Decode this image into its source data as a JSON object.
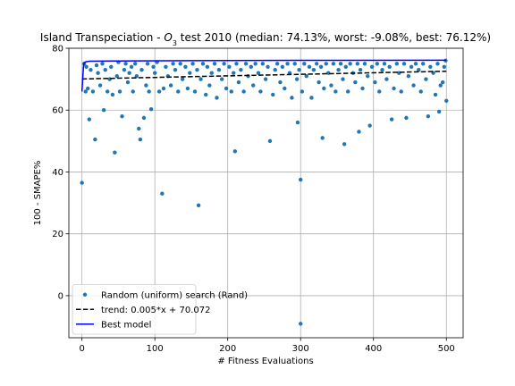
{
  "chart_data": {
    "type": "scatter",
    "title_parts": [
      "Island Transpeciation - ",
      "O",
      "3",
      " test 2010 (median: 74.13%, worst: -9.08%, best: 76.12%)"
    ],
    "x_label": "# Fitness Evaluations",
    "y_label": "100 - SMAPE%",
    "xlim": [
      -18,
      523
    ],
    "ylim": [
      -13.6,
      80
    ],
    "xticks": [
      0,
      100,
      200,
      300,
      400,
      500
    ],
    "yticks": [
      0,
      20,
      40,
      60,
      80
    ],
    "grid": true,
    "legend": "lower left",
    "series": [
      {
        "name": "Random (uniform) search (Rand)",
        "type": "scatter",
        "color": "#1f77b4",
        "x": [
          0,
          5,
          10,
          18,
          30,
          45,
          55,
          78,
          80,
          85,
          95,
          110,
          160,
          210,
          258,
          296,
          300,
          300,
          330,
          360,
          380,
          395,
          425,
          445,
          475,
          490,
          500,
          495,
          485,
          3,
          6,
          8,
          12,
          15,
          20,
          22,
          25,
          28,
          32,
          35,
          38,
          40,
          42,
          48,
          50,
          52,
          58,
          60,
          63,
          65,
          68,
          70,
          73,
          75,
          82,
          88,
          90,
          92,
          98,
          100,
          103,
          106,
          112,
          115,
          118,
          122,
          125,
          128,
          132,
          135,
          138,
          142,
          145,
          148,
          152,
          155,
          158,
          163,
          166,
          170,
          172,
          175,
          178,
          182,
          185,
          188,
          192,
          195,
          198,
          202,
          205,
          208,
          212,
          215,
          218,
          222,
          225,
          228,
          232,
          235,
          238,
          242,
          245,
          248,
          252,
          255,
          262,
          265,
          268,
          272,
          275,
          278,
          282,
          285,
          288,
          292,
          295,
          298,
          302,
          305,
          308,
          312,
          315,
          318,
          322,
          325,
          328,
          332,
          335,
          338,
          342,
          345,
          348,
          352,
          355,
          358,
          362,
          365,
          368,
          372,
          375,
          378,
          382,
          385,
          388,
          392,
          398,
          402,
          405,
          408,
          412,
          415,
          418,
          422,
          428,
          432,
          435,
          438,
          442,
          448,
          452,
          455,
          458,
          462,
          465,
          468,
          472,
          478,
          482,
          488,
          492,
          497,
          499
        ],
        "values": [
          36.5,
          66,
          57,
          50.5,
          60,
          46.3,
          58,
          54,
          50.5,
          57.5,
          60.3,
          33,
          29.2,
          46.7,
          50,
          56,
          37.5,
          -9.08,
          51,
          49,
          53,
          55,
          57,
          57.5,
          58,
          59.5,
          63,
          69,
          65,
          75,
          74,
          67,
          73,
          66,
          74.5,
          72,
          68,
          75,
          73,
          66,
          70,
          74,
          65,
          71,
          75.5,
          66,
          73,
          75,
          69,
          72,
          74,
          66,
          75,
          71,
          73,
          68,
          75,
          66,
          74,
          72,
          75.5,
          66,
          67,
          74,
          71,
          68,
          75,
          73,
          66,
          75,
          70,
          74,
          67,
          72,
          75,
          66,
          73,
          70,
          75,
          65,
          74,
          68,
          72,
          75,
          64,
          73,
          70,
          75,
          67,
          74,
          66,
          72,
          75,
          69,
          73,
          66,
          75,
          71,
          74,
          68,
          75,
          72,
          66,
          75,
          70,
          74,
          65,
          73,
          75,
          69,
          74,
          67,
          75,
          72,
          64,
          75,
          70,
          73,
          66,
          75,
          71,
          74,
          64,
          73,
          75,
          69,
          74,
          67,
          75,
          72,
          68,
          75,
          66,
          73,
          75,
          70,
          74,
          66,
          75,
          72,
          69,
          75,
          73,
          67,
          75,
          71,
          74,
          69,
          75,
          66,
          73,
          75,
          70,
          74,
          67,
          75,
          72,
          66,
          75,
          71,
          74,
          68,
          75,
          73,
          66,
          75,
          70,
          74,
          72,
          75,
          68,
          74,
          76
        ]
      },
      {
        "name": "trend: 0.005*x + 70.072",
        "type": "line",
        "color": "#000000",
        "dash": true,
        "x": [
          0,
          500
        ],
        "values": [
          70.072,
          72.572
        ]
      },
      {
        "name": "Best model",
        "type": "line",
        "color": "#0000ff",
        "x": [
          0,
          1,
          2,
          3,
          5,
          10,
          50,
          150,
          300,
          500
        ],
        "values": [
          66,
          70,
          74,
          75.3,
          75.6,
          75.8,
          75.9,
          76,
          76.1,
          76.12
        ]
      }
    ]
  }
}
